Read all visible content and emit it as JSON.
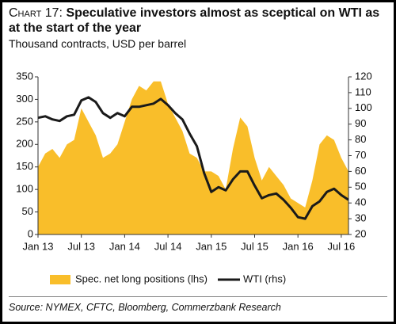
{
  "chart_data": {
    "type": "combo",
    "chart_label": "Chart 17:",
    "title": "Speculative investors almost as sceptical on WTI as at the start of the year",
    "subtitle": "Thousand contracts, USD per barrel",
    "source": "Source: NYMEX, CFTC, Bloomberg, Commerzbank Research",
    "x": [
      "2013-01",
      "2013-02",
      "2013-03",
      "2013-04",
      "2013-05",
      "2013-06",
      "2013-07",
      "2013-08",
      "2013-09",
      "2013-10",
      "2013-11",
      "2013-12",
      "2014-01",
      "2014-02",
      "2014-03",
      "2014-04",
      "2014-05",
      "2014-06",
      "2014-07",
      "2014-08",
      "2014-09",
      "2014-10",
      "2014-11",
      "2014-12",
      "2015-01",
      "2015-02",
      "2015-03",
      "2015-04",
      "2015-05",
      "2015-06",
      "2015-07",
      "2015-08",
      "2015-09",
      "2015-10",
      "2015-11",
      "2015-12",
      "2016-01",
      "2016-02",
      "2016-03",
      "2016-04",
      "2016-05",
      "2016-06",
      "2016-07",
      "2016-08"
    ],
    "xlim": [
      "2013-01",
      "2016-08"
    ],
    "xticks": [
      {
        "value": "2013-01",
        "label": "Jan 13"
      },
      {
        "value": "2013-07",
        "label": "Jul 13"
      },
      {
        "value": "2014-01",
        "label": "Jan 14"
      },
      {
        "value": "2014-07",
        "label": "Jul 14"
      },
      {
        "value": "2015-01",
        "label": "Jan 15"
      },
      {
        "value": "2015-07",
        "label": "Jul 15"
      },
      {
        "value": "2016-01",
        "label": "Jan 16"
      },
      {
        "value": "2016-07",
        "label": "Jul 16"
      }
    ],
    "ylim": [
      0,
      350
    ],
    "yticks": [
      0,
      50,
      100,
      150,
      200,
      250,
      300,
      350
    ],
    "y2lim": [
      20,
      120
    ],
    "y2ticks": [
      20,
      30,
      40,
      50,
      60,
      70,
      80,
      90,
      100,
      110,
      120
    ],
    "series": [
      {
        "name": "Spec. net long positions (lhs)",
        "color": "#f9be2a",
        "kind": "area",
        "values": [
          150,
          180,
          190,
          170,
          200,
          210,
          280,
          250,
          220,
          170,
          180,
          200,
          250,
          300,
          330,
          320,
          340,
          340,
          290,
          260,
          230,
          180,
          170,
          140,
          140,
          130,
          100,
          190,
          260,
          240,
          170,
          120,
          150,
          130,
          110,
          80,
          70,
          60,
          120,
          200,
          220,
          210,
          170,
          140
        ]
      },
      {
        "name": "WTI (rhs)",
        "color": "#1a1a1a",
        "kind": "line",
        "axis": "y2",
        "values": [
          94,
          95,
          93,
          92,
          95,
          96,
          105,
          107,
          104,
          97,
          94,
          97,
          95,
          101,
          101,
          102,
          103,
          106,
          102,
          97,
          93,
          84,
          76,
          59,
          47,
          50,
          48,
          55,
          60,
          60,
          51,
          43,
          45,
          46,
          42,
          37,
          31,
          30,
          38,
          41,
          47,
          49,
          45,
          42
        ]
      }
    ]
  }
}
